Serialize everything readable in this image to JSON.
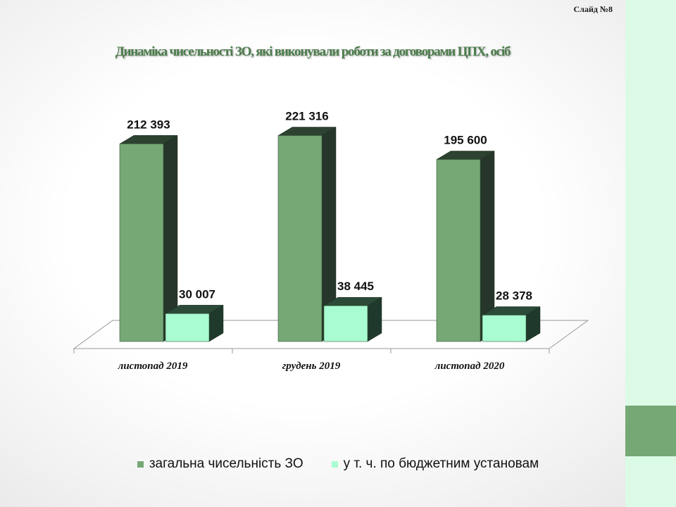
{
  "slide": {
    "number_label": "Слайд №8"
  },
  "colors": {
    "total_front": "#76a876",
    "total_side": "#26362a",
    "total_top": "#2d4230",
    "budget_front": "#a9fcd2",
    "budget_side": "#1f3a2c",
    "budget_top": "#2b4a38"
  },
  "chart_data": {
    "type": "bar",
    "title": "Динаміка чисельності ЗО, які виконували роботи за договорами ЦПХ, осіб",
    "categories": [
      "листопад 2019",
      "грудень 2019",
      "листопад 2020"
    ],
    "series": [
      {
        "name": "загальна чисельність ЗО",
        "values": [
          212393,
          221316,
          195600
        ],
        "labels": [
          "212 393",
          "221 316",
          "195 600"
        ]
      },
      {
        "name": "у т. ч. по  бюджетним установам",
        "values": [
          30007,
          38445,
          28378
        ],
        "labels": [
          "30 007",
          "38 445",
          "28 378"
        ]
      }
    ],
    "ylim": [
      0,
      240000
    ],
    "grid": false,
    "legend": "bottom",
    "style": "3d-column"
  }
}
